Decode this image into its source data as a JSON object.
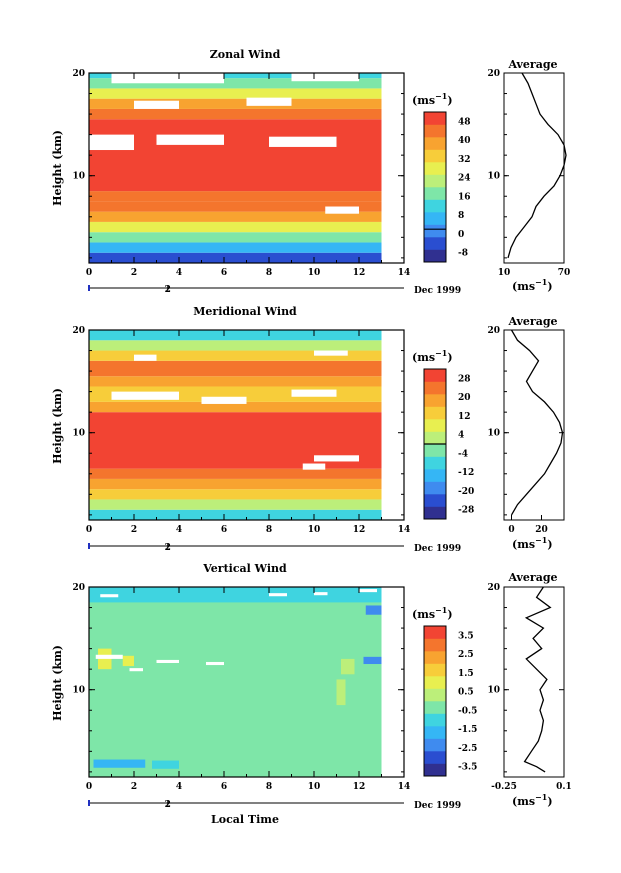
{
  "chart_data": [
    {
      "type": "heatmap",
      "title": "Zonal Wind",
      "ylabel": "Height (km)",
      "xlim": [
        0,
        14
      ],
      "ylim": [
        1.5,
        20
      ],
      "x_ticks": [
        0,
        2,
        4,
        6,
        8,
        10,
        12,
        14
      ],
      "y_ticks": [
        10,
        20
      ],
      "data_x_extent": [
        0,
        13
      ],
      "date_marker": {
        "x": 2,
        "label": "2"
      },
      "date_label": "Dec 1999",
      "colorbar": {
        "unit_label": "(ms",
        "unit_exp": "−1",
        "ticks": [
          48,
          40,
          32,
          24,
          16,
          8,
          0,
          -8
        ],
        "range": [
          -12,
          52
        ]
      },
      "profile": {
        "title": "Average",
        "xlim": [
          10,
          70
        ],
        "x_ticks": [
          10,
          70
        ],
        "xlabel": "(ms",
        "xlabel_exp": "−1",
        "points": [
          [
            14,
            2
          ],
          [
            17,
            3
          ],
          [
            22,
            4
          ],
          [
            30,
            5
          ],
          [
            38,
            6
          ],
          [
            42,
            7
          ],
          [
            50,
            8
          ],
          [
            60,
            9
          ],
          [
            66,
            10
          ],
          [
            70,
            11
          ],
          [
            72,
            12
          ],
          [
            70,
            13
          ],
          [
            64,
            14
          ],
          [
            54,
            15
          ],
          [
            46,
            16
          ],
          [
            42,
            17
          ],
          [
            38,
            18
          ],
          [
            34,
            19
          ],
          [
            28,
            20
          ]
        ]
      },
      "layers": [
        {
          "y": [
            1.5,
            2.5
          ],
          "v": -6
        },
        {
          "y": [
            2.5,
            3.5
          ],
          "v": 4
        },
        {
          "y": [
            3.5,
            4.5
          ],
          "v": 16
        },
        {
          "y": [
            4.5,
            5.5
          ],
          "v": 28
        },
        {
          "y": [
            5.5,
            6.5
          ],
          "v": 38
        },
        {
          "y": [
            6.5,
            7.5
          ],
          "v": 46
        },
        {
          "y": [
            7.5,
            8.5
          ],
          "v": 44
        },
        {
          "y": [
            8.5,
            15.5
          ],
          "v": 52
        },
        {
          "y": [
            15.5,
            16.5
          ],
          "v": 44
        },
        {
          "y": [
            16.5,
            17.5
          ],
          "v": 36
        },
        {
          "y": [
            17.5,
            18.5
          ],
          "v": 26
        },
        {
          "y": [
            18.5,
            19.5
          ],
          "v": 18
        },
        {
          "y": [
            19.5,
            20
          ],
          "v": 14
        }
      ],
      "gaps": [
        {
          "x": [
            0,
            2
          ],
          "y": [
            12.5,
            14
          ]
        },
        {
          "x": [
            3,
            6
          ],
          "y": [
            13,
            14
          ]
        },
        {
          "x": [
            8,
            11
          ],
          "y": [
            12.8,
            13.8
          ]
        },
        {
          "x": [
            2,
            4
          ],
          "y": [
            16.5,
            17.3
          ]
        },
        {
          "x": [
            7,
            9
          ],
          "y": [
            16.8,
            17.6
          ]
        },
        {
          "x": [
            1,
            6
          ],
          "y": [
            19,
            20
          ]
        },
        {
          "x": [
            9,
            12
          ],
          "y": [
            19.2,
            20
          ]
        },
        {
          "x": [
            10.5,
            12
          ],
          "y": [
            6.3,
            7
          ]
        }
      ]
    },
    {
      "type": "heatmap",
      "title": "Meridional Wind",
      "ylabel": "Height (km)",
      "xlim": [
        0,
        14
      ],
      "ylim": [
        1.5,
        20
      ],
      "x_ticks": [
        0,
        2,
        4,
        6,
        8,
        10,
        12,
        14
      ],
      "y_ticks": [
        10,
        20
      ],
      "data_x_extent": [
        0,
        13
      ],
      "date_marker": {
        "x": 2,
        "label": "2"
      },
      "date_label": "Dec 1999",
      "colorbar": {
        "unit_label": "(ms",
        "unit_exp": "−1",
        "ticks": [
          28,
          20,
          12,
          4,
          -4,
          -12,
          -20,
          -28
        ],
        "range": [
          -32,
          32
        ]
      },
      "profile": {
        "title": "Average",
        "xlim": [
          -5,
          35
        ],
        "x_ticks": [
          0,
          20
        ],
        "xlabel": "(ms",
        "xlabel_exp": "−1",
        "points": [
          [
            0,
            2
          ],
          [
            4,
            3
          ],
          [
            10,
            4
          ],
          [
            16,
            5
          ],
          [
            22,
            6
          ],
          [
            26,
            7
          ],
          [
            30,
            8
          ],
          [
            33,
            9
          ],
          [
            34,
            10
          ],
          [
            32,
            11
          ],
          [
            28,
            12
          ],
          [
            22,
            13
          ],
          [
            14,
            14
          ],
          [
            10,
            15
          ],
          [
            14,
            16
          ],
          [
            18,
            17
          ],
          [
            12,
            18
          ],
          [
            4,
            19
          ],
          [
            0,
            20
          ]
        ]
      },
      "layers": [
        {
          "y": [
            1.5,
            2.5
          ],
          "v": -8
        },
        {
          "y": [
            2.5,
            3.5
          ],
          "v": 4
        },
        {
          "y": [
            3.5,
            4.5
          ],
          "v": 12
        },
        {
          "y": [
            4.5,
            5.5
          ],
          "v": 18
        },
        {
          "y": [
            5.5,
            6.5
          ],
          "v": 24
        },
        {
          "y": [
            6.5,
            12
          ],
          "v": 32
        },
        {
          "y": [
            12,
            13
          ],
          "v": 20
        },
        {
          "y": [
            13,
            14.5
          ],
          "v": 12
        },
        {
          "y": [
            14.5,
            15.5
          ],
          "v": 16
        },
        {
          "y": [
            15.5,
            17
          ],
          "v": 26
        },
        {
          "y": [
            17,
            18
          ],
          "v": 14
        },
        {
          "y": [
            18,
            19
          ],
          "v": 2
        },
        {
          "y": [
            19,
            20
          ],
          "v": -6
        }
      ],
      "gaps": [
        {
          "x": [
            1,
            4
          ],
          "y": [
            13.2,
            14
          ]
        },
        {
          "x": [
            5,
            7
          ],
          "y": [
            12.8,
            13.5
          ]
        },
        {
          "x": [
            9,
            11
          ],
          "y": [
            13.5,
            14.2
          ]
        },
        {
          "x": [
            2,
            3
          ],
          "y": [
            17,
            17.6
          ]
        },
        {
          "x": [
            10,
            11.5
          ],
          "y": [
            17.5,
            18
          ]
        },
        {
          "x": [
            10,
            12
          ],
          "y": [
            7.2,
            7.8
          ]
        },
        {
          "x": [
            9.5,
            10.5
          ],
          "y": [
            6.4,
            7
          ]
        }
      ]
    },
    {
      "type": "heatmap",
      "title": "Vertical Wind",
      "ylabel": "Height (km)",
      "xlabel": "Local Time",
      "xlim": [
        0,
        14
      ],
      "ylim": [
        1.5,
        20
      ],
      "x_ticks": [
        0,
        2,
        4,
        6,
        8,
        10,
        12,
        14
      ],
      "y_ticks": [
        10,
        20
      ],
      "data_x_extent": [
        0,
        13
      ],
      "date_marker": {
        "x": 2,
        "label": "2"
      },
      "date_label": "Dec 1999",
      "colorbar": {
        "unit_label": "(ms",
        "unit_exp": "−1",
        "ticks": [
          3.5,
          2.5,
          1.5,
          0.5,
          -0.5,
          -1.5,
          -2.5,
          -3.5
        ],
        "range": [
          -4,
          4
        ]
      },
      "profile": {
        "title": "Average",
        "xlim": [
          -0.25,
          0.1
        ],
        "x_ticks": [
          -0.25,
          0.1
        ],
        "xlabel": "(ms",
        "xlabel_exp": "−1",
        "points": [
          [
            -0.01,
            2
          ],
          [
            -0.06,
            2.5
          ],
          [
            -0.13,
            3
          ],
          [
            -0.09,
            4
          ],
          [
            -0.05,
            5
          ],
          [
            -0.03,
            6
          ],
          [
            -0.02,
            7
          ],
          [
            -0.04,
            8
          ],
          [
            -0.02,
            9
          ],
          [
            -0.04,
            10
          ],
          [
            0.0,
            11
          ],
          [
            -0.06,
            12
          ],
          [
            -0.12,
            13
          ],
          [
            -0.03,
            14
          ],
          [
            -0.08,
            15
          ],
          [
            -0.02,
            16
          ],
          [
            -0.12,
            17
          ],
          [
            0.02,
            18
          ],
          [
            -0.06,
            19
          ],
          [
            -0.02,
            20
          ]
        ]
      },
      "layers": [
        {
          "y": [
            1.5,
            20
          ],
          "v": -0.2
        }
      ],
      "patches": [
        {
          "x": [
            0.2,
            2.5
          ],
          "y": [
            2.4,
            3.2
          ],
          "v": -1.6
        },
        {
          "x": [
            2.8,
            4
          ],
          "y": [
            2.3,
            3.1
          ],
          "v": -1.3
        },
        {
          "x": [
            11,
            11.4
          ],
          "y": [
            8.5,
            11
          ],
          "v": 0.6
        },
        {
          "x": [
            11.2,
            11.8
          ],
          "y": [
            11.5,
            13
          ],
          "v": 0.4
        },
        {
          "x": [
            12.2,
            13
          ],
          "y": [
            12.5,
            13.2
          ],
          "v": -2.2
        },
        {
          "x": [
            12.3,
            13
          ],
          "y": [
            17.3,
            18.2
          ],
          "v": -2.6
        },
        {
          "x": [
            0.4,
            1
          ],
          "y": [
            12,
            14
          ],
          "v": 1.1
        },
        {
          "x": [
            1.5,
            2
          ],
          "y": [
            12.3,
            13.3
          ],
          "v": 0.8
        },
        {
          "x": [
            0,
            13
          ],
          "y": [
            18.5,
            20
          ],
          "v": -0.9
        }
      ],
      "gaps": [
        {
          "x": [
            0.3,
            1.5
          ],
          "y": [
            13,
            13.4
          ]
        },
        {
          "x": [
            3,
            4
          ],
          "y": [
            12.6,
            12.9
          ]
        },
        {
          "x": [
            5.2,
            6
          ],
          "y": [
            12.4,
            12.7
          ]
        },
        {
          "x": [
            0.5,
            1.3
          ],
          "y": [
            19,
            19.3
          ]
        },
        {
          "x": [
            8,
            8.8
          ],
          "y": [
            19.1,
            19.4
          ]
        },
        {
          "x": [
            10,
            10.6
          ],
          "y": [
            19.2,
            19.5
          ]
        },
        {
          "x": [
            12,
            12.8
          ],
          "y": [
            19.5,
            19.8
          ]
        },
        {
          "x": [
            1.8,
            2.4
          ],
          "y": [
            11.8,
            12.1
          ]
        }
      ]
    }
  ],
  "colors": {
    "scale": [
      "#303090",
      "#2a4ed0",
      "#3f8bef",
      "#35b6f5",
      "#3fd4e0",
      "#7ee6a8",
      "#bcef7a",
      "#e8ef50",
      "#f7cd3a",
      "#f8a330",
      "#f4752d",
      "#f24433"
    ],
    "gap": "#ffffff",
    "axis": "#000000"
  }
}
